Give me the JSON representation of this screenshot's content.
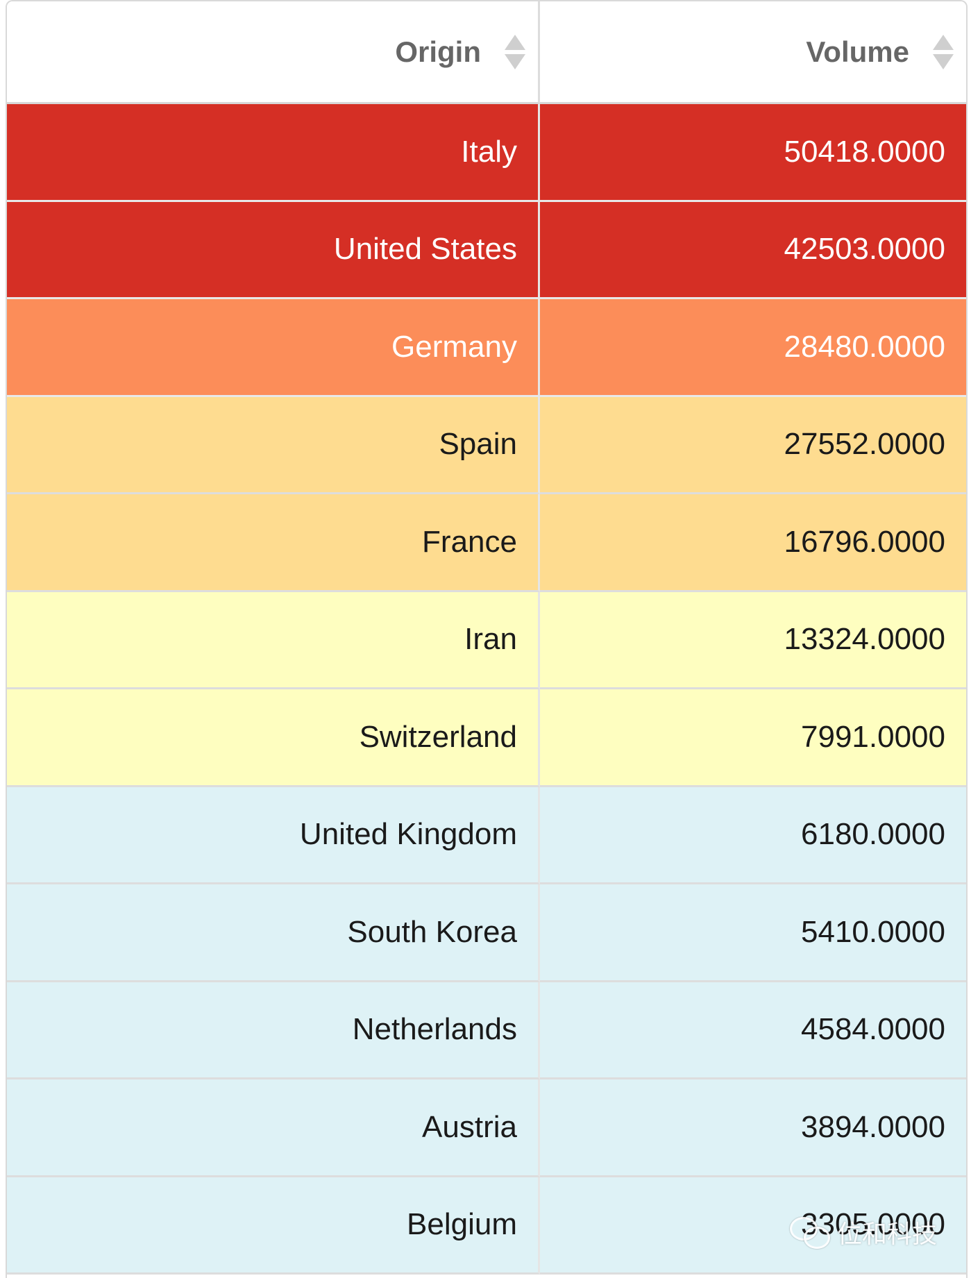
{
  "table": {
    "columns": [
      {
        "label": "Origin"
      },
      {
        "label": "Volume"
      }
    ],
    "rows": [
      {
        "origin": "Italy",
        "volume": "50418.0000",
        "level": "red"
      },
      {
        "origin": "United States",
        "volume": "42503.0000",
        "level": "red"
      },
      {
        "origin": "Germany",
        "volume": "28480.0000",
        "level": "orange"
      },
      {
        "origin": "Spain",
        "volume": "27552.0000",
        "level": "amber"
      },
      {
        "origin": "France",
        "volume": "16796.0000",
        "level": "amber"
      },
      {
        "origin": "Iran",
        "volume": "13324.0000",
        "level": "yellow"
      },
      {
        "origin": "Switzerland",
        "volume": "7991.0000",
        "level": "yellow"
      },
      {
        "origin": "United Kingdom",
        "volume": "6180.0000",
        "level": "blue"
      },
      {
        "origin": "South Korea",
        "volume": "5410.0000",
        "level": "blue"
      },
      {
        "origin": "Netherlands",
        "volume": "4584.0000",
        "level": "blue"
      },
      {
        "origin": "Austria",
        "volume": "3894.0000",
        "level": "blue"
      },
      {
        "origin": "Belgium",
        "volume": "3305.0000",
        "level": "blue"
      }
    ]
  },
  "colors": {
    "red": "#d52f25",
    "orange": "#fc8d59",
    "amber": "#fedc90",
    "yellow": "#fefec0",
    "blue": "#def2f6"
  },
  "icons": {
    "sort": "sort-icon",
    "watermark": "wechat-icon"
  },
  "watermark": {
    "text": "位和科技"
  }
}
